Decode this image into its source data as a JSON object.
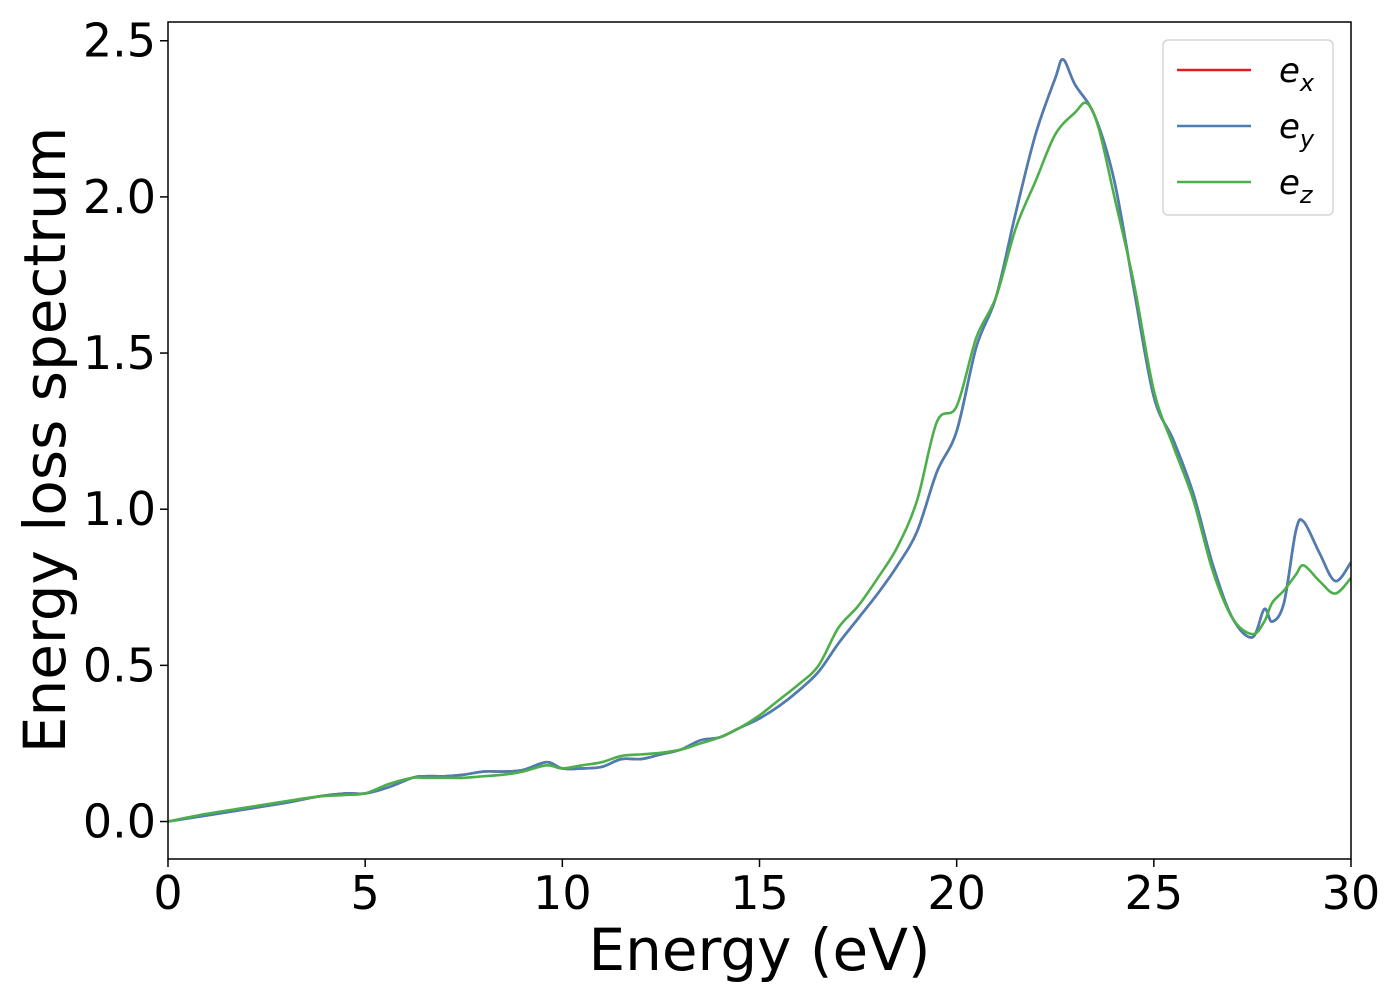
{
  "chart_data": {
    "type": "line",
    "xlabel": "Energy (eV)",
    "ylabel": "Energy loss spectrum",
    "xlim": [
      0,
      30
    ],
    "ylim": [
      -0.12,
      2.56
    ],
    "xticks": [
      0,
      5,
      10,
      15,
      20,
      25,
      30
    ],
    "xtick_labels": [
      "0",
      "5",
      "10",
      "15",
      "20",
      "25",
      "30"
    ],
    "yticks": [
      0.0,
      0.5,
      1.0,
      1.5,
      2.0,
      2.5
    ],
    "ytick_labels": [
      "0.0",
      "0.5",
      "1.0",
      "1.5",
      "2.0",
      "2.5"
    ],
    "grid": false,
    "legend_position": "top-right",
    "series": [
      {
        "name": "e_x",
        "legend": {
          "base": "e",
          "sub": "x"
        },
        "color": "#e41a1c",
        "x": [
          0,
          1,
          2,
          3,
          3.8,
          4.5,
          5,
          5.6,
          6.2,
          6.5,
          7,
          7.5,
          8,
          8.5,
          9,
          9.6,
          10,
          10.5,
          11,
          11.5,
          12,
          12.5,
          13,
          13.5,
          14,
          14.5,
          15,
          15.5,
          16,
          16.5,
          17,
          17.5,
          18,
          18.5,
          19,
          19.5,
          20,
          20.5,
          21,
          21.5,
          22,
          22.5,
          22.7,
          23,
          23.5,
          24,
          24.5,
          25,
          25.5,
          26,
          26.5,
          27,
          27.5,
          27.8,
          28,
          28.3,
          28.6,
          28.8,
          29.2,
          29.6,
          30
        ],
        "y": [
          0,
          0.02,
          0.04,
          0.06,
          0.08,
          0.09,
          0.09,
          0.11,
          0.14,
          0.145,
          0.145,
          0.15,
          0.16,
          0.16,
          0.165,
          0.19,
          0.17,
          0.17,
          0.175,
          0.2,
          0.2,
          0.215,
          0.23,
          0.26,
          0.27,
          0.3,
          0.33,
          0.37,
          0.42,
          0.48,
          0.57,
          0.65,
          0.73,
          0.82,
          0.93,
          1.12,
          1.25,
          1.52,
          1.68,
          1.95,
          2.2,
          2.38,
          2.44,
          2.36,
          2.26,
          2.05,
          1.7,
          1.36,
          1.22,
          1.05,
          0.82,
          0.65,
          0.59,
          0.68,
          0.64,
          0.7,
          0.93,
          0.96,
          0.86,
          0.77,
          0.83
        ]
      },
      {
        "name": "e_y",
        "legend": {
          "base": "e",
          "sub": "y"
        },
        "color": "#4a7fb5",
        "x": [
          0,
          1,
          2,
          3,
          3.8,
          4.5,
          5,
          5.6,
          6.2,
          6.5,
          7,
          7.5,
          8,
          8.5,
          9,
          9.6,
          10,
          10.5,
          11,
          11.5,
          12,
          12.5,
          13,
          13.5,
          14,
          14.5,
          15,
          15.5,
          16,
          16.5,
          17,
          17.5,
          18,
          18.5,
          19,
          19.5,
          20,
          20.5,
          21,
          21.5,
          22,
          22.5,
          22.7,
          23,
          23.5,
          24,
          24.5,
          25,
          25.5,
          26,
          26.5,
          27,
          27.5,
          27.8,
          28,
          28.3,
          28.6,
          28.8,
          29.2,
          29.6,
          30
        ],
        "y": [
          0,
          0.02,
          0.04,
          0.06,
          0.08,
          0.09,
          0.09,
          0.11,
          0.14,
          0.145,
          0.145,
          0.15,
          0.16,
          0.16,
          0.165,
          0.19,
          0.17,
          0.17,
          0.175,
          0.2,
          0.2,
          0.215,
          0.23,
          0.26,
          0.27,
          0.3,
          0.33,
          0.37,
          0.42,
          0.48,
          0.57,
          0.65,
          0.73,
          0.82,
          0.93,
          1.12,
          1.25,
          1.52,
          1.68,
          1.95,
          2.2,
          2.38,
          2.44,
          2.36,
          2.26,
          2.05,
          1.7,
          1.36,
          1.22,
          1.05,
          0.82,
          0.65,
          0.59,
          0.68,
          0.64,
          0.7,
          0.93,
          0.96,
          0.86,
          0.77,
          0.83
        ]
      },
      {
        "name": "e_z",
        "legend": {
          "base": "e",
          "sub": "z"
        },
        "color": "#4daf4a",
        "x": [
          0,
          1,
          2,
          3,
          3.8,
          4.5,
          5,
          5.6,
          6.2,
          6.5,
          7,
          7.5,
          8,
          8.5,
          9,
          9.6,
          10,
          10.5,
          11,
          11.5,
          12,
          12.5,
          13,
          13.5,
          14,
          14.5,
          15,
          15.5,
          16,
          16.5,
          17,
          17.5,
          18,
          18.5,
          19,
          19.5,
          20,
          20.5,
          21,
          21.5,
          22,
          22.5,
          23,
          23.3,
          23.6,
          24,
          24.5,
          25,
          25.5,
          26,
          26.5,
          27,
          27.5,
          27.8,
          28,
          28.3,
          28.6,
          28.8,
          29.2,
          29.6,
          30
        ],
        "y": [
          0,
          0.025,
          0.045,
          0.065,
          0.08,
          0.085,
          0.09,
          0.12,
          0.14,
          0.14,
          0.14,
          0.14,
          0.145,
          0.15,
          0.16,
          0.18,
          0.17,
          0.18,
          0.19,
          0.21,
          0.215,
          0.22,
          0.23,
          0.25,
          0.27,
          0.3,
          0.34,
          0.39,
          0.44,
          0.5,
          0.62,
          0.69,
          0.78,
          0.88,
          1.03,
          1.28,
          1.33,
          1.55,
          1.68,
          1.9,
          2.05,
          2.2,
          2.27,
          2.3,
          2.22,
          2.0,
          1.72,
          1.38,
          1.2,
          1.03,
          0.8,
          0.65,
          0.6,
          0.64,
          0.7,
          0.74,
          0.79,
          0.82,
          0.77,
          0.73,
          0.78
        ]
      }
    ]
  }
}
